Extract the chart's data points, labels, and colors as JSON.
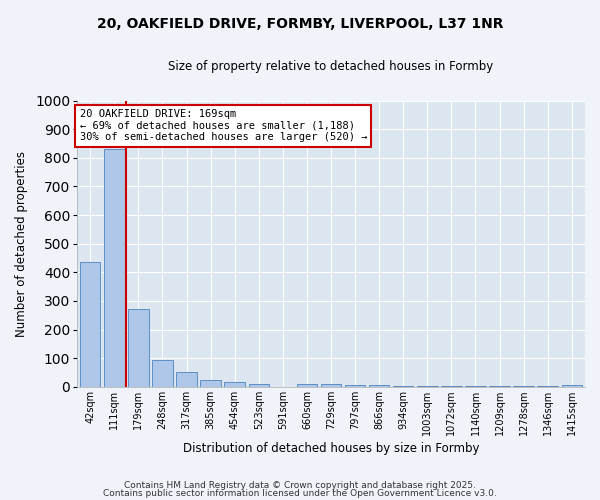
{
  "title_line1": "20, OAKFIELD DRIVE, FORMBY, LIVERPOOL, L37 1NR",
  "title_line2": "Size of property relative to detached houses in Formby",
  "xlabel": "Distribution of detached houses by size in Formby",
  "ylabel": "Number of detached properties",
  "categories": [
    "42sqm",
    "111sqm",
    "179sqm",
    "248sqm",
    "317sqm",
    "385sqm",
    "454sqm",
    "523sqm",
    "591sqm",
    "660sqm",
    "729sqm",
    "797sqm",
    "866sqm",
    "934sqm",
    "1003sqm",
    "1072sqm",
    "1140sqm",
    "1209sqm",
    "1278sqm",
    "1346sqm",
    "1415sqm"
  ],
  "values": [
    435,
    830,
    270,
    95,
    50,
    25,
    15,
    10,
    0,
    10,
    10,
    5,
    5,
    2,
    2,
    2,
    2,
    2,
    2,
    2,
    7
  ],
  "bar_color": "#aec6e8",
  "bar_edge_color": "#5b8ec4",
  "vline_x": 1.5,
  "vline_color": "#cc0000",
  "annotation_text": "20 OAKFIELD DRIVE: 169sqm\n← 69% of detached houses are smaller (1,188)\n30% of semi-detached houses are larger (520) →",
  "annotation_box_color": "#cc0000",
  "ylim": [
    0,
    1000
  ],
  "yticks": [
    0,
    100,
    200,
    300,
    400,
    500,
    600,
    700,
    800,
    900,
    1000
  ],
  "fig_bg_color": "#f0f4fa",
  "ax_bg_color": "#dce6f0",
  "grid_color": "#ffffff",
  "footer_line1": "Contains HM Land Registry data © Crown copyright and database right 2025.",
  "footer_line2": "Contains public sector information licensed under the Open Government Licence v3.0."
}
